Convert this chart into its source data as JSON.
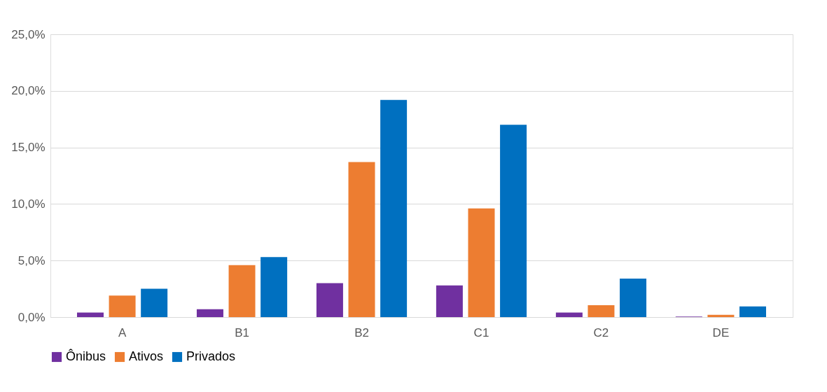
{
  "chart_data": {
    "type": "bar",
    "categories": [
      "A",
      "B1",
      "B2",
      "C1",
      "C2",
      "DE"
    ],
    "series": [
      {
        "name": "Ônibus",
        "color": "#7030a0",
        "values": [
          0.4,
          0.7,
          3.0,
          2.8,
          0.4,
          0.05
        ]
      },
      {
        "name": "Ativos",
        "color": "#ed7d31",
        "values": [
          1.9,
          4.6,
          13.7,
          9.6,
          1.05,
          0.2
        ]
      },
      {
        "name": "Privados",
        "color": "#0070c0",
        "values": [
          2.5,
          5.3,
          19.2,
          17.0,
          3.4,
          0.95
        ]
      }
    ],
    "ylim": [
      0,
      25
    ],
    "yticks": [
      {
        "value": 0,
        "label": "0,0%"
      },
      {
        "value": 5,
        "label": "5,0%"
      },
      {
        "value": 10,
        "label": "10,0%"
      },
      {
        "value": 15,
        "label": "15,0%"
      },
      {
        "value": 20,
        "label": "20,0%"
      },
      {
        "value": 25,
        "label": "25,0%"
      }
    ],
    "grid": "y",
    "legend": "bottom"
  }
}
